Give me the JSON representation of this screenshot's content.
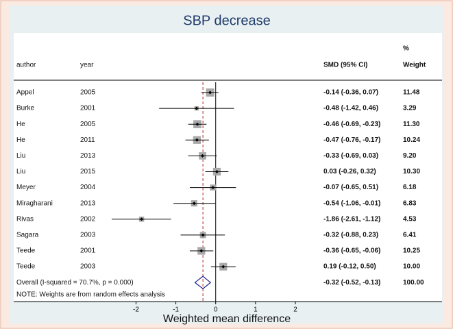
{
  "chart_data": {
    "type": "forest",
    "title": "SBP decrease",
    "headers": {
      "author": "author",
      "year": "year",
      "ci": "SMD (95% CI)",
      "weight": [
        "%",
        "Weight"
      ]
    },
    "studies": [
      {
        "author": "Appel",
        "year": 2005,
        "value": -0.14,
        "lower": -0.36,
        "upper": 0.07,
        "value_label": "-0.14 (-0.36, 0.07)",
        "weight": 11.48,
        "weight_label": "11.48"
      },
      {
        "author": "Burke",
        "year": 2001,
        "value": -0.48,
        "lower": -1.42,
        "upper": 0.46,
        "value_label": "-0.48 (-1.42, 0.46)",
        "weight": 3.29,
        "weight_label": "3.29"
      },
      {
        "author": "He",
        "year": 2005,
        "value": -0.46,
        "lower": -0.69,
        "upper": -0.23,
        "value_label": "-0.46 (-0.69, -0.23)",
        "weight": 11.3,
        "weight_label": "11.30"
      },
      {
        "author": "He",
        "year": 2011,
        "value": -0.47,
        "lower": -0.76,
        "upper": -0.17,
        "value_label": "-0.47 (-0.76, -0.17)",
        "weight": 10.24,
        "weight_label": "10.24"
      },
      {
        "author": "Liu",
        "year": 2013,
        "value": -0.33,
        "lower": -0.69,
        "upper": 0.03,
        "value_label": "-0.33 (-0.69, 0.03)",
        "weight": 9.2,
        "weight_label": "9.20"
      },
      {
        "author": "Liu",
        "year": 2015,
        "value": 0.03,
        "lower": -0.26,
        "upper": 0.32,
        "value_label": "0.03 (-0.26, 0.32)",
        "weight": 10.3,
        "weight_label": "10.30"
      },
      {
        "author": "Meyer",
        "year": 2004,
        "value": -0.07,
        "lower": -0.65,
        "upper": 0.51,
        "value_label": "-0.07 (-0.65, 0.51)",
        "weight": 6.18,
        "weight_label": "6.18"
      },
      {
        "author": "Miragharani",
        "year": 2013,
        "value": -0.54,
        "lower": -1.06,
        "upper": -0.01,
        "value_label": "-0.54 (-1.06, -0.01)",
        "weight": 6.83,
        "weight_label": "6.83"
      },
      {
        "author": "Rivas",
        "year": 2002,
        "value": -1.86,
        "lower": -2.61,
        "upper": -1.12,
        "value_label": "-1.86 (-2.61, -1.12)",
        "weight": 4.53,
        "weight_label": "4.53"
      },
      {
        "author": "Sagara",
        "year": 2003,
        "value": -0.32,
        "lower": -0.88,
        "upper": 0.23,
        "value_label": "-0.32 (-0.88, 0.23)",
        "weight": 6.41,
        "weight_label": "6.41"
      },
      {
        "author": "Teede",
        "year": 2001,
        "value": -0.36,
        "lower": -0.65,
        "upper": -0.06,
        "value_label": "-0.36 (-0.65, -0.06)",
        "weight": 10.25,
        "weight_label": "10.25"
      },
      {
        "author": "Teede",
        "year": 2003,
        "value": 0.19,
        "lower": -0.12,
        "upper": 0.5,
        "value_label": "0.19 (-0.12, 0.50)",
        "weight": 10,
        "weight_label": "10.00"
      }
    ],
    "overall": {
      "label": "Overall  (I-squared = 70.7%, p = 0.000)",
      "value": -0.32,
      "lower": -0.52,
      "upper": -0.13,
      "value_label": "-0.32 (-0.52, -0.13)",
      "weight": 100,
      "weight_label": "100.00"
    },
    "note": "NOTE: Weights are from random effects analysis",
    "xlabel": "Weighted mean difference",
    "xlim": [
      -2.61,
      2
    ],
    "xticks": [
      -2,
      -1,
      0,
      1,
      2
    ],
    "box_color": "#a9a9a9",
    "diamond_color": "#1c1c8a",
    "overall_line_color": "#b02020"
  }
}
